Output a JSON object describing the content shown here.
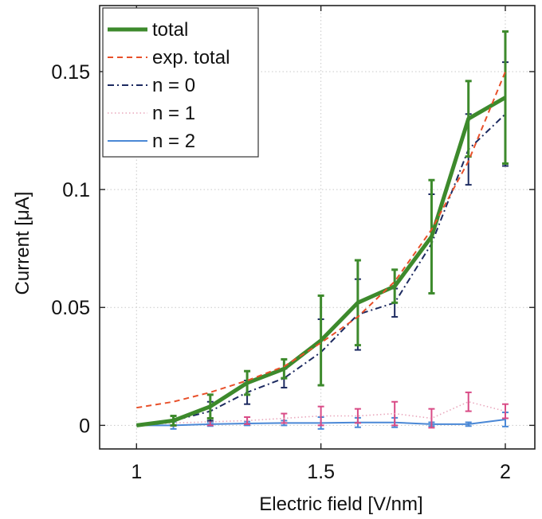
{
  "chart_data": {
    "type": "line",
    "title": "",
    "xlabel": "Electric field [V/nm]",
    "ylabel": "Current [μA]",
    "xlim": [
      0.9,
      2.08
    ],
    "ylim": [
      -0.01,
      0.178
    ],
    "xticks": [
      1,
      1.5,
      2
    ],
    "xtick_labels": [
      "1",
      "1.5",
      "2"
    ],
    "yticks": [
      0,
      0.05,
      0.1,
      0.15
    ],
    "ytick_labels": [
      "0",
      "0.05",
      "0.1",
      "0.15"
    ],
    "grid": true,
    "legend_position": "top-left",
    "x": [
      1.0,
      1.1,
      1.2,
      1.3,
      1.4,
      1.5,
      1.6,
      1.7,
      1.8,
      1.9,
      2.0
    ],
    "series": [
      {
        "name": "total",
        "color": "#3d8a2c",
        "style": "solid-thick",
        "values": [
          0.0,
          0.002,
          0.008,
          0.018,
          0.024,
          0.036,
          0.052,
          0.059,
          0.08,
          0.13,
          0.139
        ],
        "error": [
          0,
          0.002,
          0.005,
          0.005,
          0.004,
          0.019,
          0.018,
          0.007,
          0.024,
          0.016,
          0.028
        ]
      },
      {
        "name": "exp. total",
        "color": "#e8502a",
        "style": "dashed",
        "values": [
          0.0075,
          0.01,
          0.014,
          0.019,
          0.025,
          0.035,
          0.046,
          0.061,
          0.083,
          0.112,
          0.15
        ]
      },
      {
        "name": "n = 0",
        "color": "#1c2a60",
        "style": "dashdot",
        "values": [
          0.0,
          0.002,
          0.006,
          0.014,
          0.02,
          0.031,
          0.047,
          0.052,
          0.077,
          0.117,
          0.132
        ],
        "error": [
          0,
          0.002,
          0.004,
          0.005,
          0.004,
          0.014,
          0.015,
          0.006,
          0.021,
          0.015,
          0.022
        ]
      },
      {
        "name": "n = 1",
        "color": "#e9a7bc",
        "style": "dotted",
        "error_color": "#d94b86",
        "values": [
          0.0,
          0.001,
          0.0015,
          0.002,
          0.003,
          0.004,
          0.004,
          0.005,
          0.003,
          0.01,
          0.006
        ],
        "error": [
          0,
          0.0012,
          0.0015,
          0.0015,
          0.002,
          0.004,
          0.003,
          0.005,
          0.004,
          0.004,
          0.003
        ]
      },
      {
        "name": "n = 2",
        "color": "#4a88d6",
        "style": "solid",
        "values": [
          0.0,
          0.0,
          0.0005,
          0.0008,
          0.001,
          0.001,
          0.0012,
          0.0012,
          0.0005,
          0.0005,
          0.0025
        ],
        "error": [
          0,
          0.0015,
          0.0008,
          0.0008,
          0.001,
          0.0025,
          0.002,
          0.002,
          0.0008,
          0.0008,
          0.003
        ]
      }
    ]
  }
}
